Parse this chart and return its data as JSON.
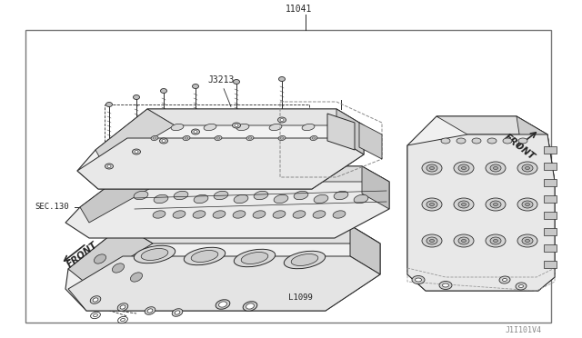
{
  "bg_color": "#ffffff",
  "border_color": "#999999",
  "line_color": "#2a2a2a",
  "text_color": "#222222",
  "label_11041": "11041",
  "label_J3213": "J3213",
  "label_L1099": "L1099",
  "label_SEC130": "SEC.130",
  "label_FRONT_left": "FRONT",
  "label_FRONT_right": "FRONT",
  "label_J1101V4": "J1I101V4",
  "fig_width": 6.4,
  "fig_height": 3.72,
  "dpi": 100
}
